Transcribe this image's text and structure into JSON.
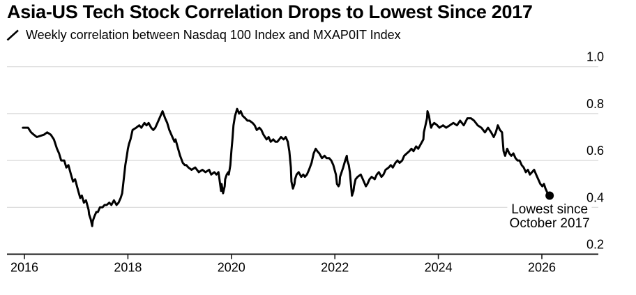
{
  "chart_data": {
    "type": "line",
    "title": "Asia-US Tech Stock Correlation Drops to Lowest Since 2017",
    "legend": {
      "icon": "line-slash-icon",
      "label": "Weekly correlation between Nasdaq 100 Index and MXAP0IT Index"
    },
    "annotation": {
      "line1": "Lowest since",
      "line2": "October 2017",
      "anchor_year": 2026.15
    },
    "x_axis": {
      "ticks": [
        2016,
        2018,
        2020,
        2022,
        2024,
        2026
      ],
      "tick_labels": [
        "2016",
        "2018",
        "2020",
        "2022",
        "2024",
        "2026"
      ],
      "range": [
        2015.66,
        2027.09
      ]
    },
    "y_axis": {
      "tick_values": [
        1.0,
        0.8,
        0.6,
        0.4,
        0.2
      ],
      "tick_labels": [
        "1.0",
        "0.8",
        "0.6",
        "0.4",
        "0.2"
      ],
      "range": [
        0.2,
        1.0
      ],
      "side": "right",
      "grid": true
    },
    "colors": {
      "line": "#000000",
      "grid": "#d8d8d8",
      "axis": "#1a1a1a",
      "text": "#000000",
      "background": "#ffffff"
    },
    "last_point": {
      "year": 2026.15,
      "value": 0.45
    },
    "points": [
      [
        2015.97,
        0.74
      ],
      [
        2016.07,
        0.74
      ],
      [
        2016.13,
        0.72
      ],
      [
        2016.18,
        0.71
      ],
      [
        2016.24,
        0.7
      ],
      [
        2016.38,
        0.71
      ],
      [
        2016.44,
        0.72
      ],
      [
        2016.51,
        0.71
      ],
      [
        2016.57,
        0.69
      ],
      [
        2016.63,
        0.65
      ],
      [
        2016.67,
        0.63
      ],
      [
        2016.71,
        0.6
      ],
      [
        2016.77,
        0.6
      ],
      [
        2016.81,
        0.57
      ],
      [
        2016.85,
        0.58
      ],
      [
        2016.9,
        0.54
      ],
      [
        2016.94,
        0.51
      ],
      [
        2016.98,
        0.52
      ],
      [
        2017.04,
        0.47
      ],
      [
        2017.08,
        0.44
      ],
      [
        2017.11,
        0.45
      ],
      [
        2017.15,
        0.42
      ],
      [
        2017.19,
        0.43
      ],
      [
        2017.24,
        0.39
      ],
      [
        2017.25,
        0.37
      ],
      [
        2017.28,
        0.35
      ],
      [
        2017.31,
        0.32
      ],
      [
        2017.32,
        0.34
      ],
      [
        2017.35,
        0.36
      ],
      [
        2017.39,
        0.38
      ],
      [
        2017.42,
        0.38
      ],
      [
        2017.46,
        0.4
      ],
      [
        2017.51,
        0.4
      ],
      [
        2017.55,
        0.41
      ],
      [
        2017.59,
        0.41
      ],
      [
        2017.64,
        0.42
      ],
      [
        2017.68,
        0.41
      ],
      [
        2017.73,
        0.43
      ],
      [
        2017.78,
        0.41
      ],
      [
        2017.82,
        0.42
      ],
      [
        2017.86,
        0.44
      ],
      [
        2017.89,
        0.46
      ],
      [
        2017.91,
        0.5
      ],
      [
        2017.93,
        0.54
      ],
      [
        2017.95,
        0.58
      ],
      [
        2017.98,
        0.62
      ],
      [
        2018.0,
        0.65
      ],
      [
        2018.02,
        0.67
      ],
      [
        2018.05,
        0.69
      ],
      [
        2018.09,
        0.73
      ],
      [
        2018.16,
        0.74
      ],
      [
        2018.22,
        0.75
      ],
      [
        2018.26,
        0.74
      ],
      [
        2018.32,
        0.76
      ],
      [
        2018.36,
        0.75
      ],
      [
        2018.4,
        0.76
      ],
      [
        2018.45,
        0.74
      ],
      [
        2018.49,
        0.73
      ],
      [
        2018.53,
        0.74
      ],
      [
        2018.59,
        0.77
      ],
      [
        2018.63,
        0.79
      ],
      [
        2018.67,
        0.81
      ],
      [
        2018.72,
        0.78
      ],
      [
        2018.76,
        0.76
      ],
      [
        2018.8,
        0.73
      ],
      [
        2018.86,
        0.7
      ],
      [
        2018.9,
        0.68
      ],
      [
        2018.92,
        0.69
      ],
      [
        2018.97,
        0.65
      ],
      [
        2019.01,
        0.62
      ],
      [
        2019.06,
        0.59
      ],
      [
        2019.1,
        0.58
      ],
      [
        2019.13,
        0.58
      ],
      [
        2019.17,
        0.57
      ],
      [
        2019.23,
        0.56
      ],
      [
        2019.3,
        0.57
      ],
      [
        2019.37,
        0.55
      ],
      [
        2019.44,
        0.56
      ],
      [
        2019.5,
        0.55
      ],
      [
        2019.57,
        0.56
      ],
      [
        2019.61,
        0.54
      ],
      [
        2019.67,
        0.55
      ],
      [
        2019.71,
        0.54
      ],
      [
        2019.75,
        0.55
      ],
      [
        2019.77,
        0.52
      ],
      [
        2019.8,
        0.47
      ],
      [
        2019.81,
        0.5
      ],
      [
        2019.84,
        0.46
      ],
      [
        2019.87,
        0.49
      ],
      [
        2019.88,
        0.52
      ],
      [
        2019.91,
        0.54
      ],
      [
        2019.94,
        0.55
      ],
      [
        2019.95,
        0.54
      ],
      [
        2019.98,
        0.58
      ],
      [
        2020.0,
        0.64
      ],
      [
        2020.02,
        0.69
      ],
      [
        2020.04,
        0.75
      ],
      [
        2020.07,
        0.79
      ],
      [
        2020.11,
        0.82
      ],
      [
        2020.15,
        0.8
      ],
      [
        2020.18,
        0.81
      ],
      [
        2020.22,
        0.79
      ],
      [
        2020.27,
        0.78
      ],
      [
        2020.31,
        0.77
      ],
      [
        2020.35,
        0.77
      ],
      [
        2020.41,
        0.76
      ],
      [
        2020.45,
        0.75
      ],
      [
        2020.49,
        0.73
      ],
      [
        2020.54,
        0.74
      ],
      [
        2020.58,
        0.73
      ],
      [
        2020.62,
        0.71
      ],
      [
        2020.68,
        0.69
      ],
      [
        2020.72,
        0.7
      ],
      [
        2020.76,
        0.68
      ],
      [
        2020.81,
        0.69
      ],
      [
        2020.85,
        0.68
      ],
      [
        2020.89,
        0.68
      ],
      [
        2020.96,
        0.7
      ],
      [
        2021.01,
        0.69
      ],
      [
        2021.05,
        0.7
      ],
      [
        2021.09,
        0.68
      ],
      [
        2021.12,
        0.64
      ],
      [
        2021.15,
        0.57
      ],
      [
        2021.16,
        0.51
      ],
      [
        2021.19,
        0.48
      ],
      [
        2021.22,
        0.5
      ],
      [
        2021.23,
        0.52
      ],
      [
        2021.26,
        0.54
      ],
      [
        2021.3,
        0.55
      ],
      [
        2021.35,
        0.53
      ],
      [
        2021.39,
        0.54
      ],
      [
        2021.42,
        0.53
      ],
      [
        2021.46,
        0.54
      ],
      [
        2021.5,
        0.56
      ],
      [
        2021.55,
        0.59
      ],
      [
        2021.59,
        0.63
      ],
      [
        2021.63,
        0.65
      ],
      [
        2021.66,
        0.64
      ],
      [
        2021.7,
        0.63
      ],
      [
        2021.75,
        0.61
      ],
      [
        2021.8,
        0.62
      ],
      [
        2021.84,
        0.61
      ],
      [
        2021.89,
        0.61
      ],
      [
        2021.93,
        0.6
      ],
      [
        2021.97,
        0.58
      ],
      [
        2022.02,
        0.54
      ],
      [
        2022.04,
        0.5
      ],
      [
        2022.07,
        0.49
      ],
      [
        2022.09,
        0.5
      ],
      [
        2022.1,
        0.53
      ],
      [
        2022.16,
        0.57
      ],
      [
        2022.2,
        0.6
      ],
      [
        2022.23,
        0.62
      ],
      [
        2022.24,
        0.6
      ],
      [
        2022.27,
        0.58
      ],
      [
        2022.29,
        0.55
      ],
      [
        2022.31,
        0.5
      ],
      [
        2022.33,
        0.45
      ],
      [
        2022.36,
        0.47
      ],
      [
        2022.37,
        0.49
      ],
      [
        2022.4,
        0.52
      ],
      [
        2022.44,
        0.53
      ],
      [
        2022.5,
        0.54
      ],
      [
        2022.54,
        0.52
      ],
      [
        2022.58,
        0.5
      ],
      [
        2022.6,
        0.49
      ],
      [
        2022.63,
        0.5
      ],
      [
        2022.67,
        0.52
      ],
      [
        2022.71,
        0.53
      ],
      [
        2022.77,
        0.52
      ],
      [
        2022.81,
        0.54
      ],
      [
        2022.85,
        0.55
      ],
      [
        2022.9,
        0.53
      ],
      [
        2022.94,
        0.54
      ],
      [
        2022.98,
        0.56
      ],
      [
        2023.04,
        0.57
      ],
      [
        2023.08,
        0.58
      ],
      [
        2023.12,
        0.57
      ],
      [
        2023.17,
        0.59
      ],
      [
        2023.21,
        0.6
      ],
      [
        2023.25,
        0.59
      ],
      [
        2023.3,
        0.6
      ],
      [
        2023.34,
        0.62
      ],
      [
        2023.39,
        0.63
      ],
      [
        2023.44,
        0.64
      ],
      [
        2023.48,
        0.65
      ],
      [
        2023.52,
        0.64
      ],
      [
        2023.57,
        0.66
      ],
      [
        2023.61,
        0.65
      ],
      [
        2023.66,
        0.67
      ],
      [
        2023.71,
        0.69
      ],
      [
        2023.72,
        0.72
      ],
      [
        2023.75,
        0.75
      ],
      [
        2023.78,
        0.78
      ],
      [
        2023.79,
        0.81
      ],
      [
        2023.82,
        0.79
      ],
      [
        2023.84,
        0.76
      ],
      [
        2023.86,
        0.74
      ],
      [
        2023.88,
        0.75
      ],
      [
        2023.92,
        0.76
      ],
      [
        2023.98,
        0.75
      ],
      [
        2024.02,
        0.74
      ],
      [
        2024.09,
        0.75
      ],
      [
        2024.15,
        0.74
      ],
      [
        2024.22,
        0.75
      ],
      [
        2024.29,
        0.76
      ],
      [
        2024.36,
        0.75
      ],
      [
        2024.42,
        0.77
      ],
      [
        2024.49,
        0.75
      ],
      [
        2024.56,
        0.78
      ],
      [
        2024.63,
        0.78
      ],
      [
        2024.69,
        0.77
      ],
      [
        2024.76,
        0.75
      ],
      [
        2024.83,
        0.74
      ],
      [
        2024.9,
        0.72
      ],
      [
        2024.96,
        0.74
      ],
      [
        2025.02,
        0.72
      ],
      [
        2025.07,
        0.7
      ],
      [
        2025.11,
        0.72
      ],
      [
        2025.15,
        0.75
      ],
      [
        2025.19,
        0.73
      ],
      [
        2025.23,
        0.72
      ],
      [
        2025.26,
        0.64
      ],
      [
        2025.29,
        0.62
      ],
      [
        2025.33,
        0.65
      ],
      [
        2025.37,
        0.63
      ],
      [
        2025.41,
        0.62
      ],
      [
        2025.45,
        0.63
      ],
      [
        2025.49,
        0.61
      ],
      [
        2025.53,
        0.6
      ],
      [
        2025.57,
        0.6
      ],
      [
        2025.61,
        0.58
      ],
      [
        2025.65,
        0.57
      ],
      [
        2025.69,
        0.55
      ],
      [
        2025.73,
        0.56
      ],
      [
        2025.77,
        0.54
      ],
      [
        2025.81,
        0.55
      ],
      [
        2025.85,
        0.56
      ],
      [
        2025.89,
        0.54
      ],
      [
        2025.93,
        0.52
      ],
      [
        2025.97,
        0.5
      ],
      [
        2026.01,
        0.49
      ],
      [
        2026.04,
        0.5
      ],
      [
        2026.07,
        0.48
      ],
      [
        2026.11,
        0.46
      ],
      [
        2026.15,
        0.45
      ]
    ]
  }
}
